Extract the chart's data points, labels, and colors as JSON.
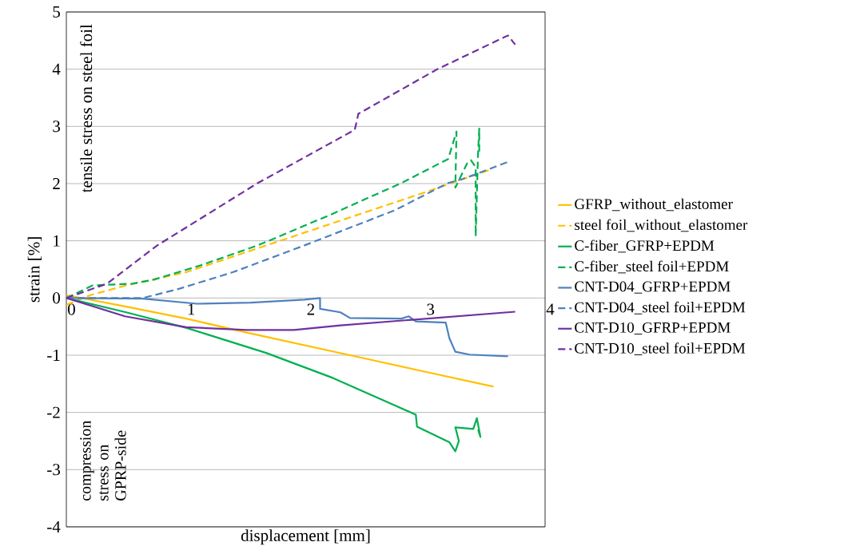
{
  "chart_data": {
    "type": "line",
    "xlabel": "displacement  [mm]",
    "ylabel": "strain [%]",
    "xlim": [
      0,
      4
    ],
    "ylim": [
      -4,
      5
    ],
    "xticks": [
      0,
      1,
      2,
      3,
      4
    ],
    "yticks": [
      -4,
      -3,
      -2,
      -1,
      0,
      1,
      2,
      3,
      4,
      5
    ],
    "grid": "y",
    "legend": "right",
    "marker": "none",
    "annotations": [
      "tensile stress on steel foil",
      "compression stress on GPRP-side"
    ],
    "series": [
      {
        "name": "GFRP_without_elastomer",
        "color": "#ffc000",
        "line_style": "solid",
        "x": [
          0,
          0.5,
          1,
          1.5,
          2,
          2.5,
          3,
          3.57
        ],
        "values": [
          0.05,
          -0.15,
          -0.36,
          -0.6,
          -0.83,
          -1.06,
          -1.29,
          -1.55
        ]
      },
      {
        "name": "steel foil_without_elastomer",
        "color": "#ffc000",
        "line_style": "dashed",
        "x": [
          0,
          0.2,
          0.5,
          1,
          1.5,
          2,
          2.5,
          3,
          3.55
        ],
        "values": [
          -0.12,
          0.05,
          0.22,
          0.45,
          0.8,
          1.15,
          1.5,
          1.85,
          2.25
        ]
      },
      {
        "name": "C-fiber_GFRP+EPDM",
        "color": "#00b050",
        "line_style": "solid",
        "x": [
          0,
          0.5,
          1,
          1.67,
          2.23,
          2.92,
          2.93,
          3.2,
          3.25,
          3.28,
          3.25,
          3.4,
          3.43,
          3.46,
          3.44
        ],
        "values": [
          0,
          -0.25,
          -0.52,
          -0.96,
          -1.4,
          -2.04,
          -2.25,
          -2.52,
          -2.68,
          -2.5,
          -2.26,
          -2.29,
          -2.1,
          -2.43,
          -2.3
        ]
      },
      {
        "name": "C-fiber_steel foil+EPDM",
        "color": "#00b050",
        "line_style": "dashed",
        "x": [
          0,
          0.22,
          0.55,
          0.73,
          1.12,
          1.6,
          2.2,
          2.8,
          3.19,
          3.26,
          3.25,
          3.35,
          3.38,
          3.42,
          3.42,
          3.44,
          3.45,
          3.45
        ],
        "values": [
          0,
          0.22,
          0.25,
          0.32,
          0.57,
          0.92,
          1.45,
          2.01,
          2.43,
          2.91,
          1.93,
          2.36,
          2.41,
          2.29,
          1.08,
          2.53,
          2.96,
          2.5
        ]
      },
      {
        "name": "CNT-D04_GFRP+EPDM",
        "color": "#4f81bd",
        "line_style": "solid",
        "x": [
          0,
          0.64,
          1.09,
          1.54,
          1.99,
          2.12,
          2.12,
          2.29,
          2.37,
          2.8,
          2.86,
          2.92,
          3.17,
          3.2,
          3.25,
          3.37,
          3.69
        ],
        "values": [
          0,
          -0.01,
          -0.1,
          -0.08,
          -0.03,
          0,
          -0.19,
          -0.25,
          -0.35,
          -0.36,
          -0.32,
          -0.41,
          -0.43,
          -0.7,
          -0.94,
          -0.99,
          -1.02
        ]
      },
      {
        "name": "CNT-D04_steel foil+EPDM",
        "color": "#4f81bd",
        "line_style": "dashed",
        "x": [
          0,
          0.64,
          0.94,
          1.39,
          1.99,
          2.74,
          3.19,
          3.31,
          3.43,
          3.69
        ],
        "values": [
          0,
          0,
          0.16,
          0.45,
          0.92,
          1.53,
          2.01,
          2.08,
          2.17,
          2.38
        ]
      },
      {
        "name": "CNT-D10_GFRP+EPDM",
        "color": "#7030a0",
        "line_style": "solid",
        "x": [
          0,
          0.49,
          1,
          1.51,
          1.9,
          2.29,
          2.89,
          3.75
        ],
        "values": [
          0,
          -0.32,
          -0.51,
          -0.56,
          -0.56,
          -0.48,
          -0.38,
          -0.24
        ]
      },
      {
        "name": "CNT-D10_steel foil+EPDM",
        "color": "#7030a0",
        "line_style": "dashed",
        "x": [
          0,
          0.34,
          0.76,
          1.6,
          2.41,
          2.44,
          3.1,
          3.69,
          3.75
        ],
        "values": [
          0,
          0.25,
          0.92,
          2.01,
          2.94,
          3.22,
          4.0,
          4.59,
          4.43
        ]
      }
    ]
  }
}
